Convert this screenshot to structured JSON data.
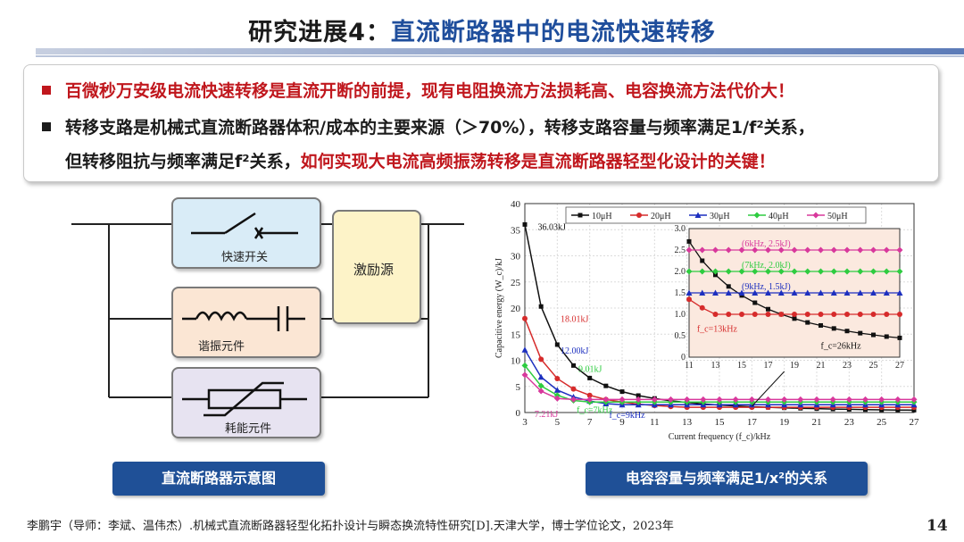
{
  "title": {
    "prefix": "研究进展4：",
    "highlight": "直流断路器中的电流快速转移"
  },
  "bullets": [
    {
      "text": "百微秒万安级电流快速转移是直流开断的前提，现有电阻换流方法损耗高、电容换流方法代价大！"
    },
    {
      "text": "转移支路是机械式直流断路器体积/成本的主要来源（＞70%），转移支路容量与频率满足1/f²关系，"
    },
    {
      "text_black": "但转移阻抗与频率满足f²关系，",
      "text_red": "如何实现大电流高频振荡转移是直流断路器轻型化设计的关键！"
    }
  ],
  "schematic": {
    "fast_switch": "快速开关",
    "resonant": "谐振元件",
    "energy_absorb": "耗能元件",
    "excitation": "激励源"
  },
  "captions": {
    "left": "直流断路器示意图",
    "right": "电容容量与频率满足1/x²的关系"
  },
  "colors": {
    "title_blue": "#1f4e9c",
    "red": "#c0171d",
    "caption_bg": "#1f5097"
  },
  "chart_data": {
    "type": "line",
    "xlabel": "Current frequency (f_c)/kHz",
    "ylabel": "Capacitive energy (W_c)/kJ",
    "xlim": [
      3,
      27
    ],
    "ylim": [
      0,
      40
    ],
    "xticks": [
      3,
      5,
      7,
      9,
      11,
      13,
      15,
      17,
      19,
      21,
      23,
      25,
      27
    ],
    "yticks": [
      0,
      5,
      10,
      15,
      20,
      25,
      30,
      35,
      40
    ],
    "legend_position": "top",
    "x": [
      3,
      4,
      5,
      6,
      7,
      8,
      9,
      10,
      11,
      12,
      13,
      14,
      15,
      16,
      17,
      18,
      19,
      20,
      21,
      22,
      23,
      24,
      25,
      26,
      27
    ],
    "series": [
      {
        "name": "10μH",
        "color": "#111111",
        "marker": "square",
        "values": [
          36.0,
          20.3,
          13.0,
          9.0,
          6.6,
          5.1,
          4.0,
          3.25,
          2.7,
          2.25,
          1.92,
          1.65,
          1.44,
          1.27,
          1.12,
          1.0,
          0.9,
          0.81,
          0.74,
          0.67,
          0.61,
          0.56,
          0.52,
          0.48,
          0.45
        ]
      },
      {
        "name": "20μH",
        "color": "#d62b2b",
        "marker": "circle",
        "values": [
          18.0,
          10.2,
          6.5,
          4.5,
          3.3,
          2.5,
          2.0,
          1.6,
          1.35,
          1.15,
          1.0,
          1.0,
          1.0,
          1.0,
          1.0,
          1.0,
          1.0,
          1.0,
          1.0,
          1.0,
          1.0,
          1.0,
          1.0,
          1.0,
          1.0
        ]
      },
      {
        "name": "30μH",
        "color": "#1c2fbf",
        "marker": "triangle",
        "values": [
          12.0,
          6.8,
          4.3,
          3.0,
          2.2,
          1.7,
          1.5,
          1.5,
          1.5,
          1.5,
          1.5,
          1.5,
          1.5,
          1.5,
          1.5,
          1.5,
          1.5,
          1.5,
          1.5,
          1.5,
          1.5,
          1.5,
          1.5,
          1.5,
          1.5
        ]
      },
      {
        "name": "40μH",
        "color": "#2ecc40",
        "marker": "diamond",
        "values": [
          9.0,
          5.1,
          3.3,
          2.3,
          2.0,
          2.0,
          2.0,
          2.0,
          2.0,
          2.0,
          2.0,
          2.0,
          2.0,
          2.0,
          2.0,
          2.0,
          2.0,
          2.0,
          2.0,
          2.0,
          2.0,
          2.0,
          2.0,
          2.0,
          2.0
        ]
      },
      {
        "name": "50μH",
        "color": "#d8399c",
        "marker": "diamond",
        "values": [
          7.2,
          4.1,
          2.7,
          2.5,
          2.5,
          2.5,
          2.5,
          2.5,
          2.5,
          2.5,
          2.5,
          2.5,
          2.5,
          2.5,
          2.5,
          2.5,
          2.5,
          2.5,
          2.5,
          2.5,
          2.5,
          2.5,
          2.5,
          2.5,
          2.5
        ]
      }
    ],
    "annotations": [
      "36.03kJ",
      "18.01kJ",
      "12.00kJ",
      "9.01kJ",
      "7.21kJ",
      "f_c=7kHz",
      "f_c=9kHz"
    ],
    "inset": {
      "xlim": [
        11,
        27
      ],
      "ylim": [
        0,
        3.0
      ],
      "xticks": [
        11,
        13,
        15,
        17,
        19,
        21,
        23,
        25,
        27
      ],
      "yticks": [
        0,
        0.5,
        1.0,
        1.5,
        2.0,
        2.5,
        3.0
      ],
      "ytick_labels": [
        "0",
        "0.5",
        "1.0",
        "1.5",
        "2.0",
        "2.5",
        "3.0"
      ],
      "annotations": [
        "(6kHz, 2.5kJ)",
        "(7kHz, 2.0kJ)",
        "(9kHz, 1.5kJ)",
        "f_c=13kHz",
        "f_c=26kHz"
      ]
    }
  },
  "reference": "李鹏宇（导师：李斌、温伟杰）.机械式直流断路器轻型化拓扑设计与瞬态换流特性研究[D].天津大学，博士学位论文，2023年",
  "page_number": "14"
}
